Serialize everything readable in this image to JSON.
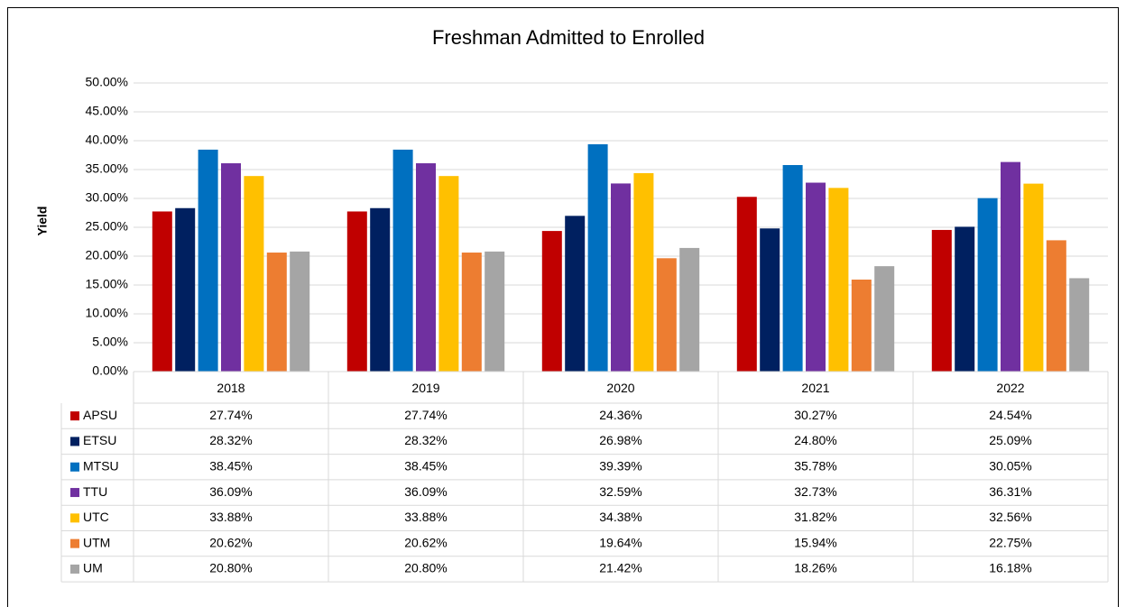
{
  "chart_data": {
    "type": "bar",
    "title": "Freshman Admitted to Enrolled",
    "y_label": "Yield",
    "categories": [
      "2018",
      "2019",
      "2020",
      "2021",
      "2022"
    ],
    "series": [
      {
        "name": "APSU",
        "color": "#c00000",
        "values": [
          27.74,
          27.74,
          24.36,
          30.27,
          24.54
        ],
        "value_labels": [
          "27.74%",
          "27.74%",
          "24.36%",
          "30.27%",
          "24.54%"
        ]
      },
      {
        "name": "ETSU",
        "color": "#002060",
        "values": [
          28.32,
          28.32,
          26.98,
          24.8,
          25.09
        ],
        "value_labels": [
          "28.32%",
          "28.32%",
          "26.98%",
          "24.80%",
          "25.09%"
        ]
      },
      {
        "name": "MTSU",
        "color": "#0070c0",
        "values": [
          38.45,
          38.45,
          39.39,
          35.78,
          30.05
        ],
        "value_labels": [
          "38.45%",
          "38.45%",
          "39.39%",
          "35.78%",
          "30.05%"
        ]
      },
      {
        "name": "TTU",
        "color": "#7030a0",
        "values": [
          36.09,
          36.09,
          32.59,
          32.73,
          36.31
        ],
        "value_labels": [
          "36.09%",
          "36.09%",
          "32.59%",
          "32.73%",
          "36.31%"
        ]
      },
      {
        "name": "UTC",
        "color": "#ffc000",
        "values": [
          33.88,
          33.88,
          34.38,
          31.82,
          32.56
        ],
        "value_labels": [
          "33.88%",
          "33.88%",
          "34.38%",
          "31.82%",
          "32.56%"
        ]
      },
      {
        "name": "UTM",
        "color": "#ed7d31",
        "values": [
          20.62,
          20.62,
          19.64,
          15.94,
          22.75
        ],
        "value_labels": [
          "20.62%",
          "20.62%",
          "19.64%",
          "15.94%",
          "22.75%"
        ]
      },
      {
        "name": "UM",
        "color": "#a5a5a5",
        "values": [
          20.8,
          20.8,
          21.42,
          18.26,
          16.18
        ],
        "value_labels": [
          "20.80%",
          "20.80%",
          "21.42%",
          "18.26%",
          "16.18%"
        ]
      }
    ],
    "ylim": [
      0,
      50
    ],
    "yticks": [
      {
        "value": 0,
        "label": "0.00%"
      },
      {
        "value": 5,
        "label": "5.00%"
      },
      {
        "value": 10,
        "label": "10.00%"
      },
      {
        "value": 15,
        "label": "15.00%"
      },
      {
        "value": 20,
        "label": "20.00%"
      },
      {
        "value": 25,
        "label": "25.00%"
      },
      {
        "value": 30,
        "label": "30.00%"
      },
      {
        "value": 35,
        "label": "35.00%"
      },
      {
        "value": 40,
        "label": "40.00%"
      },
      {
        "value": 45,
        "label": "45.00%"
      },
      {
        "value": 50,
        "label": "50.00%"
      }
    ],
    "grid": true
  }
}
